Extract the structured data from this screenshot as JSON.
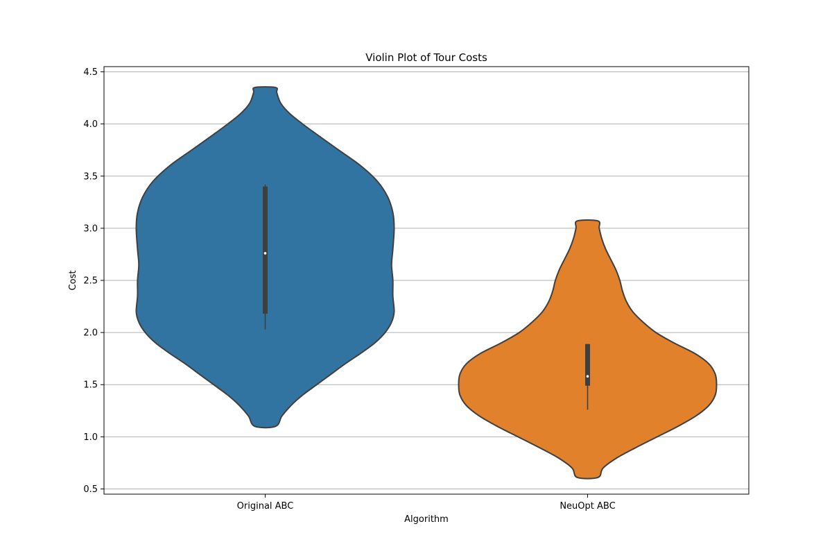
{
  "chart_data": {
    "type": "violin",
    "title": "Violin Plot of Tour Costs",
    "xlabel": "Algorithm",
    "ylabel": "Cost",
    "ylim": [
      0.45,
      4.55
    ],
    "yticks": [
      0.5,
      1.0,
      1.5,
      2.0,
      2.5,
      3.0,
      3.5,
      4.0,
      4.5
    ],
    "ytick_labels": [
      "0.5",
      "1.0",
      "1.5",
      "2.0",
      "2.5",
      "3.0",
      "3.5",
      "4.0",
      "4.5"
    ],
    "grid": "y",
    "categories": [
      "Original ABC",
      "NeuOpt ABC"
    ],
    "series": [
      {
        "color": "#3274a1",
        "min": 1.1,
        "max": 4.35,
        "q1": 2.18,
        "median": 2.76,
        "q3": 3.4,
        "whisker_low": 2.03,
        "whisker_high": 3.42,
        "density": [
          [
            1.1,
            0.08
          ],
          [
            1.2,
            0.13
          ],
          [
            1.3,
            0.2
          ],
          [
            1.4,
            0.29
          ],
          [
            1.5,
            0.4
          ],
          [
            1.6,
            0.51
          ],
          [
            1.7,
            0.62
          ],
          [
            1.8,
            0.74
          ],
          [
            1.9,
            0.85
          ],
          [
            2.0,
            0.93
          ],
          [
            2.1,
            0.98
          ],
          [
            2.2,
            1.0
          ],
          [
            2.35,
            0.99
          ],
          [
            2.5,
            0.99
          ],
          [
            2.65,
            0.98
          ],
          [
            2.8,
            0.99
          ],
          [
            3.0,
            1.0
          ],
          [
            3.15,
            0.99
          ],
          [
            3.3,
            0.95
          ],
          [
            3.45,
            0.87
          ],
          [
            3.6,
            0.74
          ],
          [
            3.75,
            0.57
          ],
          [
            3.9,
            0.4
          ],
          [
            4.0,
            0.29
          ],
          [
            4.1,
            0.19
          ],
          [
            4.2,
            0.12
          ],
          [
            4.3,
            0.09
          ],
          [
            4.35,
            0.08
          ]
        ]
      },
      {
        "color": "#e1812c",
        "min": 0.61,
        "max": 3.07,
        "q1": 1.49,
        "median": 1.58,
        "q3": 1.89,
        "whisker_low": 1.26,
        "whisker_high": 1.89,
        "density": [
          [
            0.61,
            0.08
          ],
          [
            0.7,
            0.12
          ],
          [
            0.8,
            0.23
          ],
          [
            0.9,
            0.38
          ],
          [
            1.0,
            0.54
          ],
          [
            1.1,
            0.7
          ],
          [
            1.2,
            0.84
          ],
          [
            1.3,
            0.94
          ],
          [
            1.4,
            0.99
          ],
          [
            1.5,
            1.0
          ],
          [
            1.6,
            0.99
          ],
          [
            1.7,
            0.94
          ],
          [
            1.8,
            0.83
          ],
          [
            1.9,
            0.67
          ],
          [
            2.0,
            0.53
          ],
          [
            2.1,
            0.43
          ],
          [
            2.2,
            0.35
          ],
          [
            2.3,
            0.3
          ],
          [
            2.4,
            0.27
          ],
          [
            2.5,
            0.25
          ],
          [
            2.6,
            0.22
          ],
          [
            2.7,
            0.18
          ],
          [
            2.8,
            0.14
          ],
          [
            2.9,
            0.11
          ],
          [
            3.0,
            0.09
          ],
          [
            3.07,
            0.08
          ]
        ]
      }
    ]
  }
}
